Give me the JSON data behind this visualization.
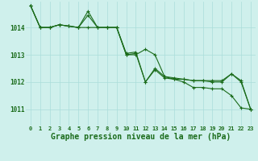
{
  "title": "Graphe pression niveau de la mer (hPa)",
  "background_color": "#cff0ec",
  "grid_color": "#aaddda",
  "line_color": "#1a6b1a",
  "x_ticks": [
    0,
    1,
    2,
    3,
    4,
    5,
    6,
    7,
    8,
    9,
    10,
    11,
    12,
    13,
    14,
    15,
    16,
    17,
    18,
    19,
    20,
    21,
    22,
    23
  ],
  "y_ticks": [
    1011,
    1012,
    1013,
    1014
  ],
  "ylim": [
    1010.4,
    1014.95
  ],
  "xlim": [
    -0.5,
    23.5
  ],
  "series1": [
    1014.8,
    1014.0,
    1014.0,
    1014.1,
    1014.05,
    1014.0,
    1014.45,
    1014.0,
    1014.0,
    1014.0,
    1013.05,
    1013.1,
    1012.0,
    1012.5,
    1012.2,
    1012.15,
    1012.1,
    1012.05,
    1012.05,
    1012.05,
    1012.05,
    1012.3,
    1012.05,
    1011.0
  ],
  "series2": [
    1014.8,
    1014.0,
    1014.0,
    1014.1,
    1014.05,
    1014.0,
    1014.6,
    1014.0,
    1014.0,
    1014.0,
    1013.0,
    1013.05,
    1012.0,
    1012.45,
    1012.15,
    1012.1,
    1012.0,
    1011.8,
    1011.8,
    1011.75,
    1011.75,
    1011.5,
    1011.05,
    1011.0
  ],
  "series3": [
    1014.8,
    1014.0,
    1014.0,
    1014.1,
    1014.05,
    1014.0,
    1014.0,
    1014.0,
    1014.0,
    1014.0,
    1013.0,
    1013.0,
    1013.2,
    1013.0,
    1012.2,
    1012.1,
    1012.1,
    1012.05,
    1012.05,
    1012.0,
    1012.0,
    1012.3,
    1012.0,
    1011.0
  ],
  "marker": "+",
  "marker_size": 3,
  "linewidth": 0.8,
  "title_fontsize": 7,
  "tick_fontsize": 5
}
